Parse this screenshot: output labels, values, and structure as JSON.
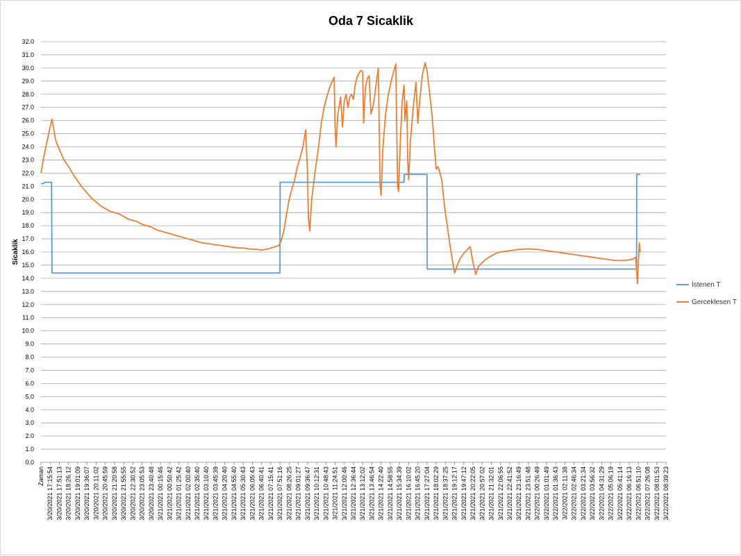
{
  "chart_data": {
    "type": "line",
    "title": "Oda 7 Sicaklik",
    "xlabel": "",
    "ylabel": "Sicaklik",
    "ylim": [
      0,
      32
    ],
    "ytick_step": 1,
    "grid": true,
    "legend_position": "right",
    "x_categories": [
      "Zaman",
      "3/20/2021 17:15:54",
      "3/20/2021 17:51:13",
      "3/20/2021 18:26:12",
      "3/20/2021 19:01:09",
      "3/20/2021 19:36:07",
      "3/20/2021 20:11:02",
      "3/20/2021 20:45:59",
      "3/20/2021 21:20:58",
      "3/20/2021 21:55:55",
      "3/20/2021 22:30:52",
      "3/20/2021 23:05:53",
      "3/20/2021 23:40:48",
      "3/21/2021 00:15:46",
      "3/21/2021 00:50:42",
      "3/21/2021 01:25:42",
      "3/21/2021 02:00:40",
      "3/21/2021 02:35:40",
      "3/21/2021 03:10:40",
      "3/21/2021 03:45:39",
      "3/21/2021 04:20:40",
      "3/21/2021 04:55:40",
      "3/21/2021 05:30:43",
      "3/21/2021 06:05:43",
      "3/21/2021 06:40:41",
      "3/21/2021 07:15:41",
      "3/21/2021 07:51:16",
      "3/21/2021 08:26:25",
      "3/21/2021 09:01:27",
      "3/21/2021 09:36:47",
      "3/21/2021 10:12:31",
      "3/21/2021 10:48:43",
      "3/21/2021 11:24:51",
      "3/21/2021 12:00:46",
      "3/21/2021 12:36:44",
      "3/21/2021 13:12:02",
      "3/21/2021 13:46:54",
      "3/21/2021 14:22:40",
      "3/21/2021 14:58:55",
      "3/21/2021 15:34:39",
      "3/21/2021 16:10:02",
      "3/21/2021 16:45:20",
      "3/21/2021 17:27:04",
      "3/21/2021 18:02:29",
      "3/21/2021 18:37:25",
      "3/21/2021 19:12:17",
      "3/21/2021 19:47:12",
      "3/21/2021 20:22:05",
      "3/21/2021 20:57:02",
      "3/21/2021 21:32:01",
      "3/21/2021 22:06:55",
      "3/21/2021 22:41:52",
      "3/21/2021 23:16:49",
      "3/21/2021 23:51:48",
      "3/22/2021 00:26:49",
      "3/22/2021 01:01:49",
      "3/22/2021 01:36:43",
      "3/22/2021 02:11:38",
      "3/22/2021 02:46:34",
      "3/22/2021 03:21:34",
      "3/22/2021 03:56:32",
      "3/22/2021 04:31:29",
      "3/22/2021 05:06:19",
      "3/22/2021 05:41:14",
      "3/22/2021 06:16:13",
      "3/22/2021 06:51:10",
      "3/22/2021 07:26:08",
      "3/22/2021 08:01:53",
      "3/22/2021 08:39:23"
    ],
    "series": [
      {
        "name": "İstenen T",
        "color": "#5b9bd5",
        "points": [
          [
            0.0,
            21.2
          ],
          [
            0.3,
            21.2
          ],
          [
            0.4,
            21.3
          ],
          [
            1.15,
            21.3
          ],
          [
            1.2,
            14.4
          ],
          [
            26.0,
            14.4
          ],
          [
            26.02,
            21.3
          ],
          [
            39.5,
            21.3
          ],
          [
            39.52,
            21.9
          ],
          [
            42.0,
            21.9
          ],
          [
            42.02,
            14.7
          ],
          [
            64.8,
            14.7
          ],
          [
            64.82,
            21.9
          ],
          [
            65.2,
            21.9
          ]
        ]
      },
      {
        "name": "Gerceklesen T",
        "color": "#ed7d31",
        "points": [
          [
            0.0,
            22.0
          ],
          [
            0.3,
            23.2
          ],
          [
            0.6,
            24.2
          ],
          [
            0.9,
            25.2
          ],
          [
            1.2,
            26.1
          ],
          [
            1.4,
            25.3
          ],
          [
            1.6,
            24.5
          ],
          [
            2.0,
            23.8
          ],
          [
            2.5,
            23.0
          ],
          [
            3.0,
            22.5
          ],
          [
            3.5,
            21.9
          ],
          [
            4.0,
            21.4
          ],
          [
            4.5,
            20.9
          ],
          [
            5.0,
            20.5
          ],
          [
            5.5,
            20.1
          ],
          [
            6.0,
            19.8
          ],
          [
            6.5,
            19.5
          ],
          [
            7.0,
            19.3
          ],
          [
            7.5,
            19.1
          ],
          [
            8.0,
            19.0
          ],
          [
            8.5,
            18.9
          ],
          [
            9.0,
            18.7
          ],
          [
            9.5,
            18.5
          ],
          [
            10.0,
            18.4
          ],
          [
            10.5,
            18.3
          ],
          [
            11.0,
            18.1
          ],
          [
            11.5,
            18.0
          ],
          [
            12.0,
            17.9
          ],
          [
            12.5,
            17.7
          ],
          [
            13.0,
            17.6
          ],
          [
            13.5,
            17.5
          ],
          [
            14.0,
            17.4
          ],
          [
            14.5,
            17.3
          ],
          [
            15.0,
            17.2
          ],
          [
            15.5,
            17.1
          ],
          [
            16.0,
            17.0
          ],
          [
            16.5,
            16.9
          ],
          [
            17.0,
            16.8
          ],
          [
            17.5,
            16.7
          ],
          [
            18.0,
            16.65
          ],
          [
            18.5,
            16.6
          ],
          [
            19.0,
            16.55
          ],
          [
            19.5,
            16.5
          ],
          [
            20.0,
            16.45
          ],
          [
            20.5,
            16.4
          ],
          [
            21.0,
            16.35
          ],
          [
            21.5,
            16.3
          ],
          [
            22.0,
            16.3
          ],
          [
            22.5,
            16.25
          ],
          [
            23.0,
            16.2
          ],
          [
            23.5,
            16.2
          ],
          [
            24.0,
            16.15
          ],
          [
            24.5,
            16.2
          ],
          [
            25.0,
            16.3
          ],
          [
            25.5,
            16.4
          ],
          [
            25.9,
            16.5
          ],
          [
            26.1,
            16.8
          ],
          [
            26.4,
            17.5
          ],
          [
            26.7,
            18.8
          ],
          [
            27.0,
            20.0
          ],
          [
            27.3,
            20.8
          ],
          [
            27.6,
            21.5
          ],
          [
            27.9,
            22.5
          ],
          [
            28.2,
            23.2
          ],
          [
            28.5,
            24.0
          ],
          [
            28.8,
            25.3
          ],
          [
            29.0,
            22.0
          ],
          [
            29.1,
            18.5
          ],
          [
            29.25,
            17.6
          ],
          [
            29.45,
            20.0
          ],
          [
            29.8,
            22.0
          ],
          [
            30.2,
            24.0
          ],
          [
            30.5,
            25.8
          ],
          [
            30.8,
            27.0
          ],
          [
            31.1,
            27.8
          ],
          [
            31.4,
            28.5
          ],
          [
            31.7,
            29.0
          ],
          [
            31.9,
            29.3
          ],
          [
            32.0,
            25.5
          ],
          [
            32.1,
            24.0
          ],
          [
            32.3,
            26.5
          ],
          [
            32.6,
            27.8
          ],
          [
            32.8,
            25.5
          ],
          [
            33.0,
            27.5
          ],
          [
            33.2,
            28.0
          ],
          [
            33.4,
            27.0
          ],
          [
            33.6,
            27.8
          ],
          [
            33.8,
            28.0
          ],
          [
            34.0,
            27.6
          ],
          [
            34.2,
            28.8
          ],
          [
            34.4,
            29.3
          ],
          [
            34.6,
            29.6
          ],
          [
            34.8,
            29.8
          ],
          [
            35.0,
            29.7
          ],
          [
            35.1,
            25.8
          ],
          [
            35.3,
            28.5
          ],
          [
            35.5,
            29.2
          ],
          [
            35.7,
            29.4
          ],
          [
            35.9,
            26.5
          ],
          [
            36.1,
            27.0
          ],
          [
            36.3,
            27.8
          ],
          [
            36.5,
            29.0
          ],
          [
            36.7,
            30.0
          ],
          [
            36.9,
            21.0
          ],
          [
            37.0,
            20.3
          ],
          [
            37.2,
            24.0
          ],
          [
            37.5,
            26.5
          ],
          [
            37.8,
            28.0
          ],
          [
            38.1,
            29.0
          ],
          [
            38.4,
            29.8
          ],
          [
            38.6,
            30.3
          ],
          [
            38.8,
            21.0
          ],
          [
            38.9,
            20.6
          ],
          [
            39.1,
            24.5
          ],
          [
            39.3,
            27.5
          ],
          [
            39.5,
            28.7
          ],
          [
            39.6,
            26.0
          ],
          [
            39.8,
            27.5
          ],
          [
            39.9,
            23.0
          ],
          [
            40.0,
            21.5
          ],
          [
            40.2,
            24.5
          ],
          [
            40.5,
            27.0
          ],
          [
            40.8,
            28.9
          ],
          [
            41.0,
            25.8
          ],
          [
            41.2,
            27.5
          ],
          [
            41.5,
            29.5
          ],
          [
            41.8,
            30.4
          ],
          [
            42.0,
            29.8
          ],
          [
            42.3,
            28.0
          ],
          [
            42.6,
            26.0
          ],
          [
            42.8,
            24.0
          ],
          [
            43.0,
            22.3
          ],
          [
            43.2,
            22.5
          ],
          [
            43.4,
            22.0
          ],
          [
            43.6,
            21.5
          ],
          [
            43.9,
            19.5
          ],
          [
            44.2,
            18.0
          ],
          [
            44.5,
            16.5
          ],
          [
            44.8,
            15.2
          ],
          [
            45.0,
            14.4
          ],
          [
            45.3,
            15.0
          ],
          [
            45.6,
            15.5
          ],
          [
            46.0,
            15.9
          ],
          [
            46.4,
            16.2
          ],
          [
            46.7,
            16.4
          ],
          [
            47.0,
            15.2
          ],
          [
            47.3,
            14.3
          ],
          [
            47.6,
            14.9
          ],
          [
            48.0,
            15.2
          ],
          [
            48.5,
            15.5
          ],
          [
            49.0,
            15.7
          ],
          [
            49.5,
            15.9
          ],
          [
            50.0,
            16.0
          ],
          [
            50.5,
            16.05
          ],
          [
            51.0,
            16.1
          ],
          [
            51.5,
            16.15
          ],
          [
            52.0,
            16.2
          ],
          [
            52.5,
            16.2
          ],
          [
            53.0,
            16.25
          ],
          [
            53.5,
            16.2
          ],
          [
            54.0,
            16.2
          ],
          [
            54.5,
            16.15
          ],
          [
            55.0,
            16.1
          ],
          [
            55.5,
            16.05
          ],
          [
            56.0,
            16.0
          ],
          [
            56.5,
            15.95
          ],
          [
            57.0,
            15.9
          ],
          [
            57.5,
            15.85
          ],
          [
            58.0,
            15.8
          ],
          [
            58.5,
            15.75
          ],
          [
            59.0,
            15.7
          ],
          [
            59.5,
            15.65
          ],
          [
            60.0,
            15.6
          ],
          [
            60.5,
            15.55
          ],
          [
            61.0,
            15.5
          ],
          [
            61.5,
            15.45
          ],
          [
            62.0,
            15.4
          ],
          [
            62.5,
            15.35
          ],
          [
            63.0,
            15.35
          ],
          [
            63.5,
            15.35
          ],
          [
            64.0,
            15.4
          ],
          [
            64.5,
            15.5
          ],
          [
            64.7,
            15.6
          ],
          [
            64.8,
            14.5
          ],
          [
            64.9,
            13.6
          ],
          [
            65.0,
            15.3
          ],
          [
            65.1,
            16.7
          ],
          [
            65.2,
            16.0
          ]
        ]
      }
    ]
  }
}
